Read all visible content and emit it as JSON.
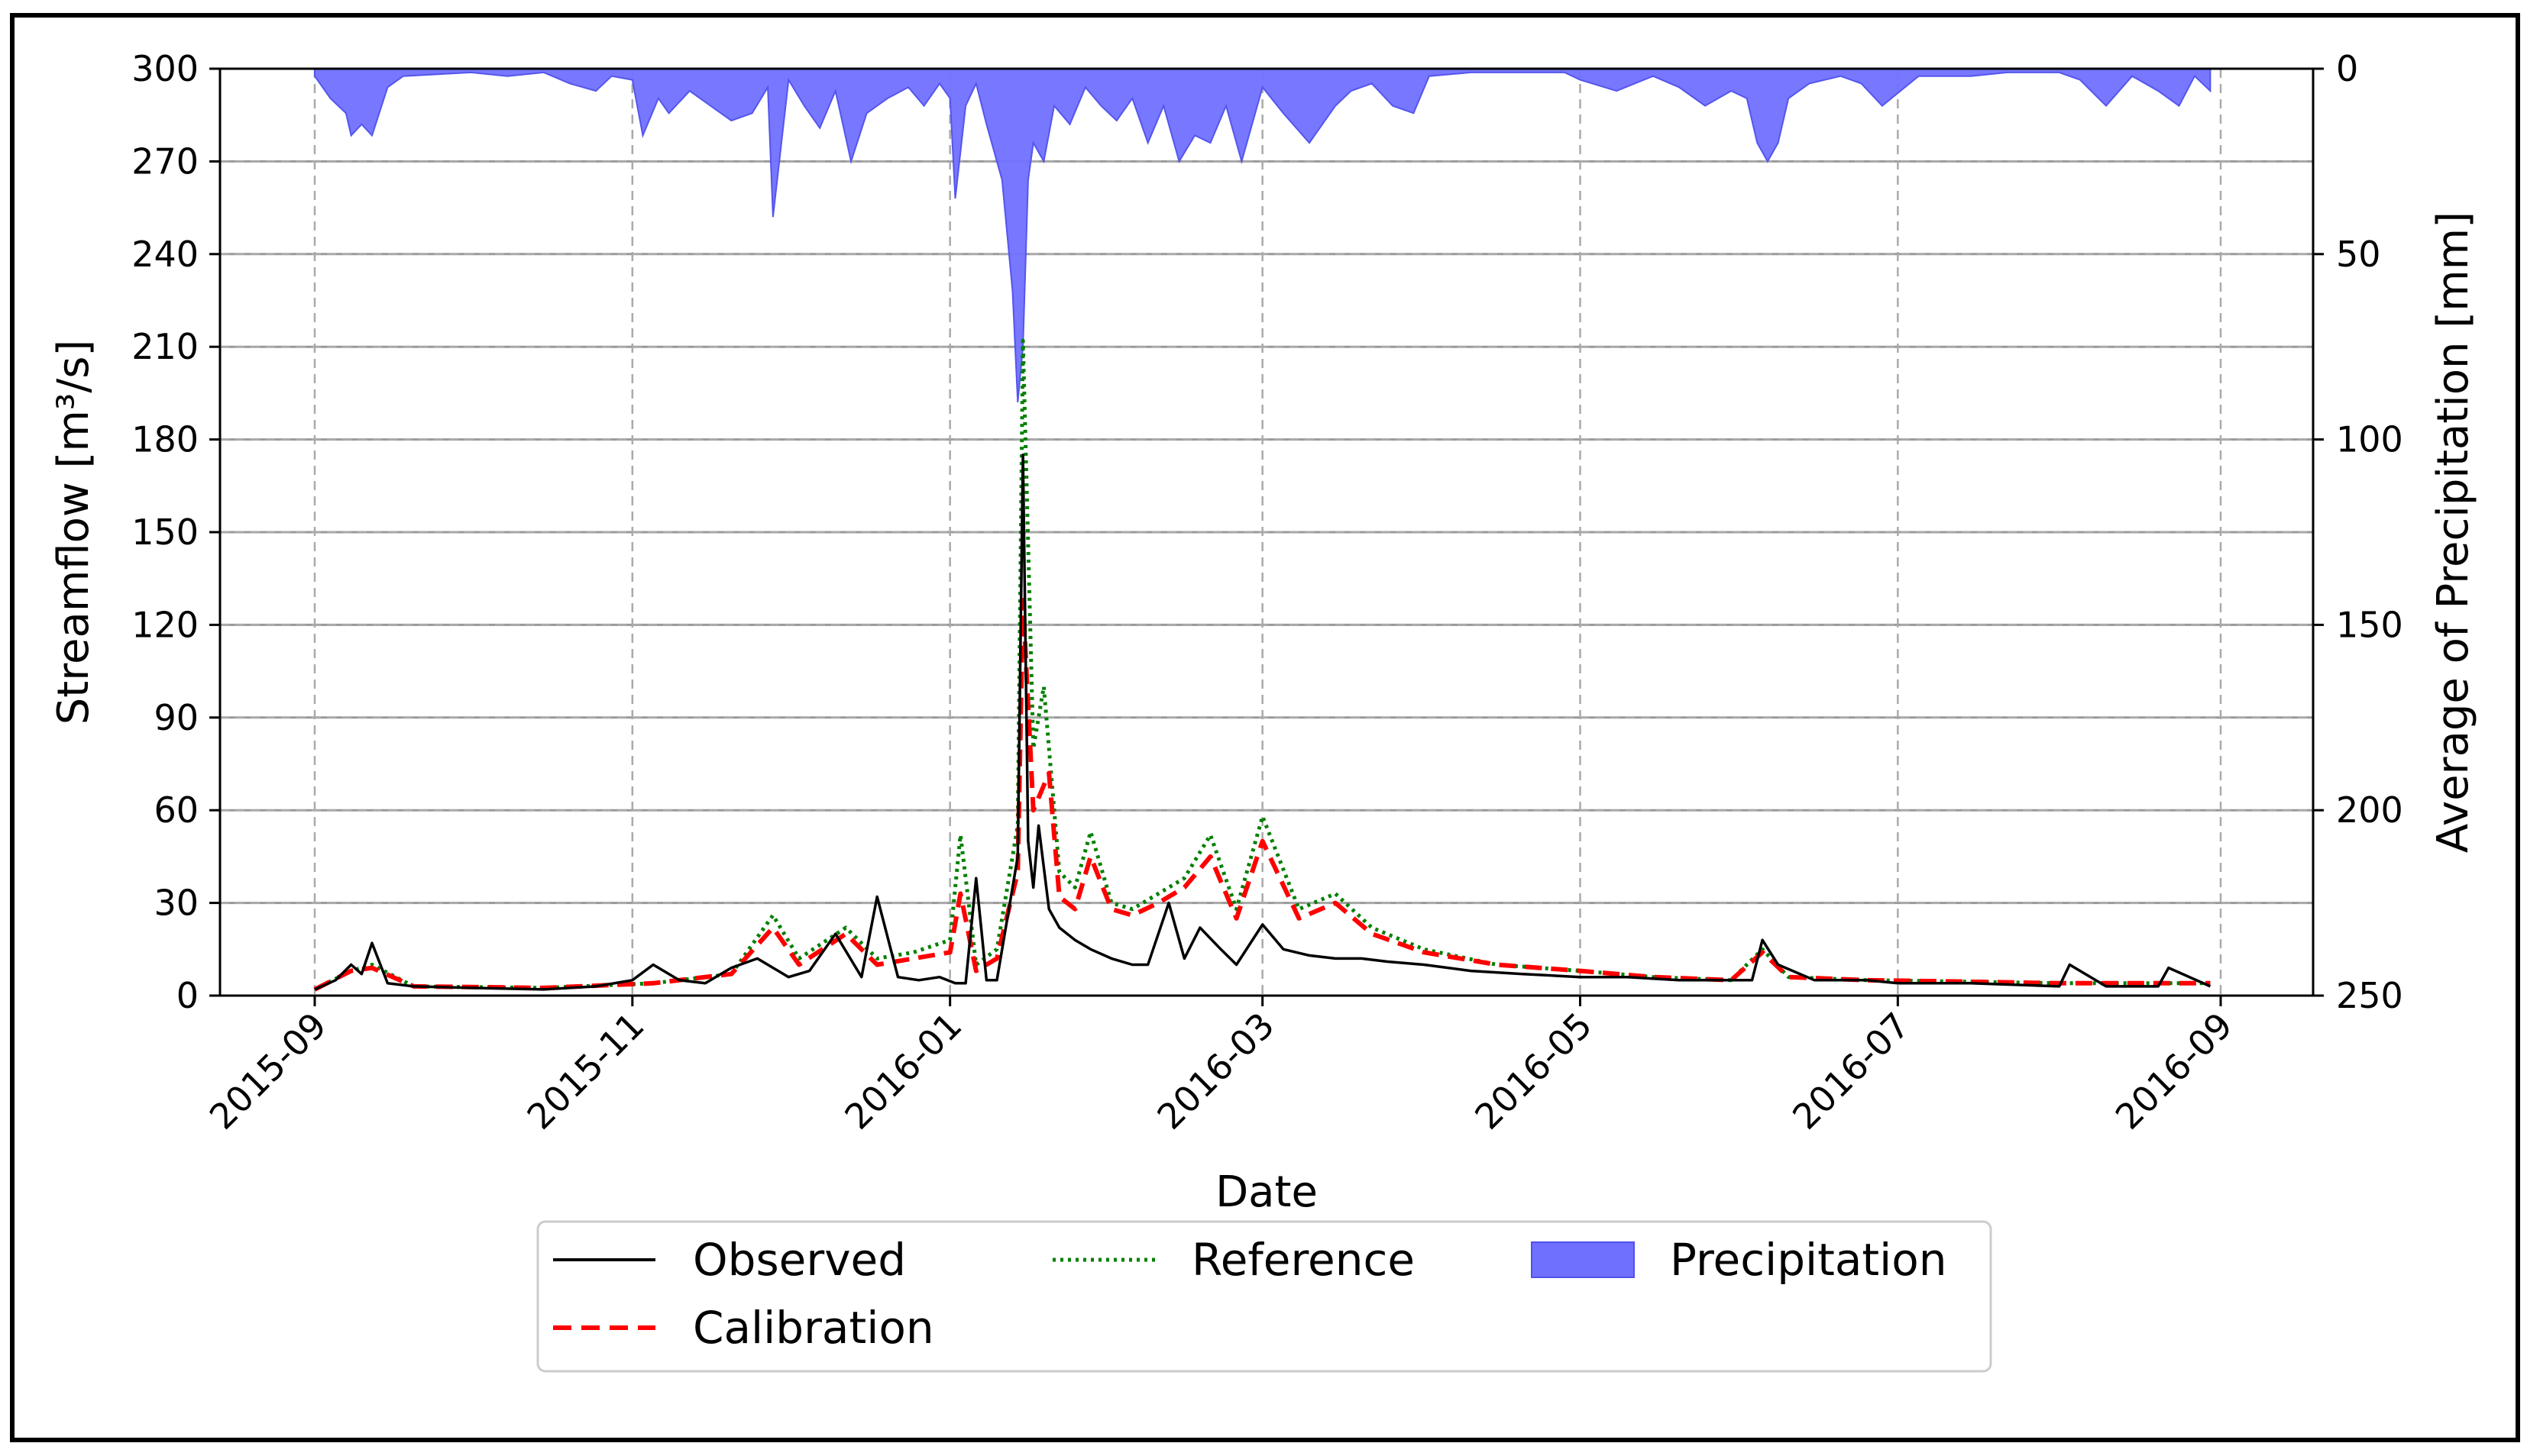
{
  "chart_data": {
    "type": "line",
    "title": "",
    "xlabel": "Date",
    "ylabel": "Streamflow [m³/s]",
    "y2label": "Average of Precipitation [mm]",
    "xlim": [
      "2015-09-01",
      "2016-09-01"
    ],
    "ylim": [
      0,
      300
    ],
    "y2lim": [
      250,
      0
    ],
    "y2_inverted": true,
    "x_ticks": [
      "2015-09",
      "2015-11",
      "2016-01",
      "2016-03",
      "2016-05",
      "2016-07",
      "2016-09"
    ],
    "y_ticks": [
      0,
      30,
      60,
      90,
      120,
      150,
      180,
      210,
      240,
      270,
      300
    ],
    "y2_ticks": [
      0,
      50,
      100,
      150,
      200,
      250
    ],
    "grid": true,
    "legend_position": "bottom-center",
    "series": [
      {
        "name": "Observed",
        "axis": "left",
        "color": "#000000",
        "style": "solid",
        "x": [
          "2015-09-01",
          "2015-09-05",
          "2015-09-08",
          "2015-09-10",
          "2015-09-12",
          "2015-09-15",
          "2015-09-20",
          "2015-10-01",
          "2015-10-15",
          "2015-10-25",
          "2015-11-01",
          "2015-11-05",
          "2015-11-10",
          "2015-11-15",
          "2015-11-20",
          "2015-11-25",
          "2015-12-01",
          "2015-12-05",
          "2015-12-10",
          "2015-12-15",
          "2015-12-18",
          "2015-12-22",
          "2015-12-26",
          "2015-12-30",
          "2016-01-02",
          "2016-01-04",
          "2016-01-06",
          "2016-01-08",
          "2016-01-10",
          "2016-01-14",
          "2016-01-15",
          "2016-01-16",
          "2016-01-17",
          "2016-01-18",
          "2016-01-20",
          "2016-01-22",
          "2016-01-25",
          "2016-01-28",
          "2016-02-01",
          "2016-02-05",
          "2016-02-08",
          "2016-02-12",
          "2016-02-15",
          "2016-02-18",
          "2016-02-22",
          "2016-02-25",
          "2016-03-01",
          "2016-03-05",
          "2016-03-10",
          "2016-03-15",
          "2016-03-20",
          "2016-03-25",
          "2016-04-01",
          "2016-04-10",
          "2016-04-20",
          "2016-05-01",
          "2016-05-10",
          "2016-05-20",
          "2016-05-30",
          "2016-06-03",
          "2016-06-05",
          "2016-06-08",
          "2016-06-15",
          "2016-06-25",
          "2016-07-01",
          "2016-07-15",
          "2016-08-01",
          "2016-08-03",
          "2016-08-10",
          "2016-08-20",
          "2016-08-22",
          "2016-08-30"
        ],
        "y": [
          2,
          5,
          10,
          7,
          17,
          4,
          3,
          2.5,
          2,
          3,
          5,
          10,
          5,
          4,
          9,
          12,
          6,
          8,
          20,
          6,
          32,
          6,
          5,
          6,
          4,
          4,
          38,
          5,
          5,
          45,
          175,
          50,
          35,
          55,
          28,
          22,
          18,
          15,
          12,
          10,
          10,
          30,
          12,
          22,
          15,
          10,
          23,
          15,
          13,
          12,
          12,
          11,
          10,
          8,
          7,
          6,
          6,
          5,
          5,
          5,
          18,
          10,
          5,
          5,
          4,
          4,
          3,
          10,
          3,
          3,
          9,
          3
        ]
      },
      {
        "name": "Calibration",
        "axis": "left",
        "color": "#ff0000",
        "style": "dashed",
        "x": [
          "2015-09-01",
          "2015-09-08",
          "2015-09-12",
          "2015-09-20",
          "2015-10-15",
          "2015-11-05",
          "2015-11-20",
          "2015-11-28",
          "2015-12-03",
          "2015-12-12",
          "2015-12-18",
          "2015-12-25",
          "2016-01-01",
          "2016-01-03",
          "2016-01-06",
          "2016-01-10",
          "2016-01-14",
          "2016-01-15",
          "2016-01-17",
          "2016-01-20",
          "2016-01-22",
          "2016-01-25",
          "2016-01-28",
          "2016-02-01",
          "2016-02-05",
          "2016-02-10",
          "2016-02-15",
          "2016-02-20",
          "2016-02-25",
          "2016-03-01",
          "2016-03-08",
          "2016-03-15",
          "2016-03-22",
          "2016-04-01",
          "2016-04-15",
          "2016-05-01",
          "2016-05-15",
          "2016-05-30",
          "2016-06-05",
          "2016-06-10",
          "2016-06-25",
          "2016-07-15",
          "2016-08-01",
          "2016-08-20",
          "2016-08-30"
        ],
        "y": [
          2,
          8,
          9,
          3,
          2.5,
          4,
          7,
          22,
          10,
          20,
          10,
          12,
          14,
          33,
          8,
          12,
          40,
          128,
          60,
          72,
          32,
          28,
          45,
          28,
          26,
          30,
          35,
          45,
          25,
          50,
          25,
          30,
          20,
          14,
          10,
          8,
          6,
          5,
          14,
          6,
          5,
          4.5,
          4,
          4,
          4
        ]
      },
      {
        "name": "Reference",
        "axis": "left",
        "color": "#008000",
        "style": "dotted",
        "x": [
          "2015-09-01",
          "2015-09-08",
          "2015-09-12",
          "2015-09-20",
          "2015-10-15",
          "2015-11-05",
          "2015-11-20",
          "2015-11-28",
          "2015-12-03",
          "2015-12-12",
          "2015-12-18",
          "2015-12-25",
          "2016-01-01",
          "2016-01-03",
          "2016-01-06",
          "2016-01-10",
          "2016-01-14",
          "2016-01-15",
          "2016-01-17",
          "2016-01-19",
          "2016-01-20",
          "2016-01-22",
          "2016-01-25",
          "2016-01-28",
          "2016-02-01",
          "2016-02-05",
          "2016-02-10",
          "2016-02-15",
          "2016-02-20",
          "2016-02-25",
          "2016-03-01",
          "2016-03-08",
          "2016-03-15",
          "2016-03-22",
          "2016-04-01",
          "2016-04-15",
          "2016-05-01",
          "2016-05-15",
          "2016-05-30",
          "2016-06-05",
          "2016-06-10",
          "2016-06-25",
          "2016-07-15",
          "2016-08-01",
          "2016-08-20",
          "2016-08-30"
        ],
        "y": [
          2,
          8,
          10,
          3,
          2.5,
          4,
          7,
          26,
          12,
          22,
          12,
          14,
          18,
          52,
          10,
          15,
          55,
          212,
          80,
          100,
          80,
          40,
          35,
          53,
          30,
          28,
          33,
          38,
          52,
          28,
          58,
          28,
          33,
          22,
          15,
          10,
          8,
          6,
          5,
          15,
          6,
          5,
          4.5,
          4,
          4,
          4
        ]
      },
      {
        "name": "Precipitation",
        "axis": "right",
        "color": "#7070ff",
        "style": "filled-area",
        "x": [
          "2015-09-01",
          "2015-09-04",
          "2015-09-07",
          "2015-09-08",
          "2015-09-10",
          "2015-09-12",
          "2015-09-15",
          "2015-09-18",
          "2015-10-01",
          "2015-10-08",
          "2015-10-15",
          "2015-10-20",
          "2015-10-25",
          "2015-10-28",
          "2015-11-01",
          "2015-11-03",
          "2015-11-06",
          "2015-11-08",
          "2015-11-12",
          "2015-11-16",
          "2015-11-20",
          "2015-11-24",
          "2015-11-27",
          "2015-11-28",
          "2015-12-01",
          "2015-12-04",
          "2015-12-07",
          "2015-12-10",
          "2015-12-13",
          "2015-12-16",
          "2015-12-20",
          "2015-12-24",
          "2015-12-27",
          "2015-12-30",
          "2016-01-01",
          "2016-01-02",
          "2016-01-04",
          "2016-01-06",
          "2016-01-08",
          "2016-01-11",
          "2016-01-13",
          "2016-01-14",
          "2016-01-15",
          "2016-01-16",
          "2016-01-17",
          "2016-01-19",
          "2016-01-21",
          "2016-01-24",
          "2016-01-27",
          "2016-01-30",
          "2016-02-02",
          "2016-02-05",
          "2016-02-08",
          "2016-02-11",
          "2016-02-14",
          "2016-02-17",
          "2016-02-20",
          "2016-02-23",
          "2016-02-26",
          "2016-03-01",
          "2016-03-05",
          "2016-03-10",
          "2016-03-15",
          "2016-03-18",
          "2016-03-22",
          "2016-03-26",
          "2016-03-30",
          "2016-04-02",
          "2016-04-10",
          "2016-04-20",
          "2016-04-28",
          "2016-05-01",
          "2016-05-08",
          "2016-05-15",
          "2016-05-20",
          "2016-05-25",
          "2016-05-30",
          "2016-06-02",
          "2016-06-04",
          "2016-06-06",
          "2016-06-08",
          "2016-06-10",
          "2016-06-14",
          "2016-06-20",
          "2016-06-24",
          "2016-06-28",
          "2016-07-05",
          "2016-07-15",
          "2016-07-22",
          "2016-08-01",
          "2016-08-05",
          "2016-08-10",
          "2016-08-15",
          "2016-08-20",
          "2016-08-24",
          "2016-08-27",
          "2016-08-30"
        ],
        "y": [
          2,
          8,
          12,
          18,
          15,
          18,
          5,
          2,
          1,
          2,
          1,
          4,
          6,
          2,
          3,
          18,
          8,
          12,
          6,
          10,
          14,
          12,
          5,
          40,
          3,
          10,
          16,
          6,
          25,
          12,
          8,
          5,
          10,
          4,
          8,
          35,
          10,
          4,
          15,
          30,
          60,
          90,
          75,
          30,
          20,
          25,
          10,
          15,
          5,
          10,
          14,
          8,
          20,
          10,
          25,
          18,
          20,
          10,
          25,
          5,
          12,
          20,
          10,
          6,
          4,
          10,
          12,
          2,
          1,
          1,
          1,
          3,
          6,
          2,
          5,
          10,
          6,
          8,
          20,
          25,
          20,
          8,
          4,
          2,
          4,
          10,
          2,
          2,
          1,
          1,
          3,
          10,
          2,
          6,
          10,
          2,
          6
        ]
      }
    ]
  }
}
